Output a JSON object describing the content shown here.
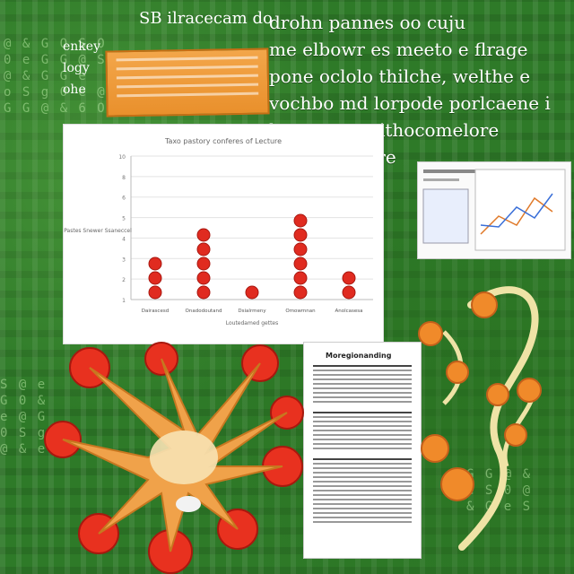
{
  "headline": {
    "lines": [
      "drohn pannes oo cuju",
      "me elbowr es meeto e flrage",
      "pone oclolo thilche, welthe e",
      "vochbo md lorpode porlcaene i",
      "lnotorogme ithocomelore",
      "lerry paseiore"
    ]
  },
  "top_left_text": "SB ilracecam   do",
  "side_left_lines": [
    "enkey",
    "logy",
    "ohe"
  ],
  "chart_data": {
    "type": "scatter",
    "title": "Taxo pastory conferes of Lecture",
    "categories": [
      "Dairascesd",
      "Onadodoutand",
      "Dsialrmeny",
      "Omowmnan",
      "Anolcasesa"
    ],
    "counts": [
      3,
      5,
      1,
      6,
      2
    ],
    "y_ticks": [
      "10",
      "8",
      "6",
      "5",
      "4",
      "3",
      "2",
      "1"
    ],
    "ylabel": "Pastes Snewer Ssaneccel",
    "xlabel": "Loutedamed gettes",
    "ylim": [
      0,
      10
    ],
    "dot_color": "#e02b20"
  },
  "document": {
    "title": "Moregionanding"
  },
  "colors": {
    "background": "#2e7a28",
    "accent_orange": "#f08a2a",
    "accent_red": "#e02b20"
  }
}
